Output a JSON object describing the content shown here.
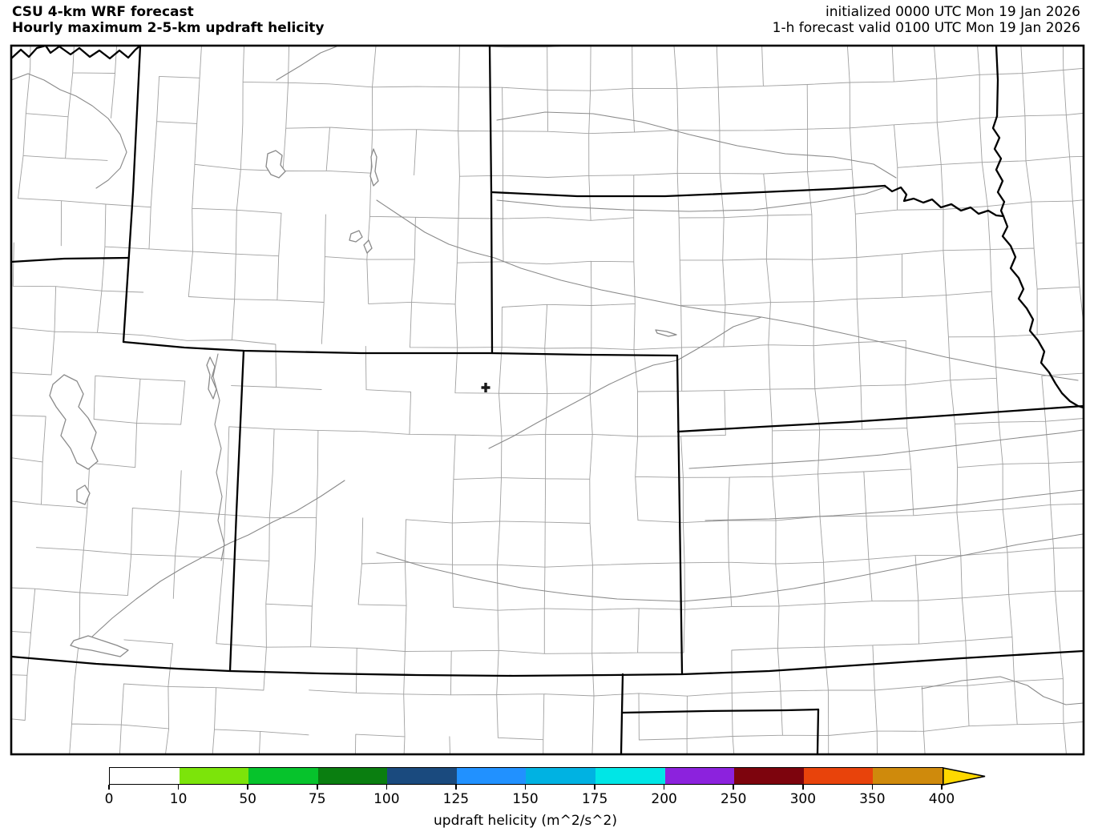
{
  "header": {
    "title_line1": "CSU 4-km WRF forecast",
    "title_line2": "Hourly maximum 2-5-km updraft helicity",
    "init_line": "initialized 0000 UTC Mon 19 Jan 2026",
    "valid_line": "1-h forecast valid 0100 UTC Mon 19 Jan 2026"
  },
  "map": {
    "marker_symbol": "+",
    "land_color": "#ffffff",
    "county_line_color": "#a0a0a0",
    "state_line_color": "#000000",
    "water_line_color": "#8a8a8a"
  },
  "colorbar": {
    "label": "updraft helicity (m^2/s^2)",
    "ticks": [
      "0",
      "10",
      "50",
      "75",
      "100",
      "125",
      "150",
      "175",
      "200",
      "250",
      "300",
      "350",
      "400"
    ],
    "colors": [
      "#ffffff",
      "#7ce40a",
      "#06c32c",
      "#0a7e10",
      "#1a4a7e",
      "#2191ff",
      "#00b2e2",
      "#00e6e6",
      "#8c22dd",
      "#7d040d",
      "#e8430b",
      "#cf8a0c"
    ],
    "overflow_color": "#ffd800"
  }
}
